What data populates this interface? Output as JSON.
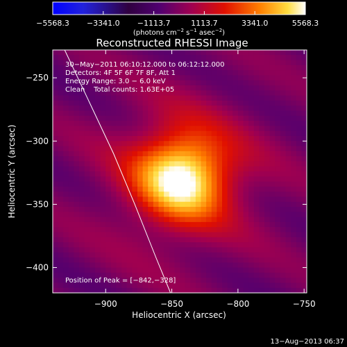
{
  "chart_data": {
    "type": "heatmap",
    "title": "Reconstructed RHESSI Image",
    "xlabel": "Heliocentric X (arcsec)",
    "ylabel": "Heliocentric Y (arcsec)",
    "xlim": [
      -940,
      -748
    ],
    "ylim": [
      -420,
      -228
    ],
    "x_ticks": [
      -900,
      -850,
      -800,
      -750
    ],
    "x_tick_labels": [
      "−900",
      "−850",
      "−800",
      "−750"
    ],
    "y_ticks": [
      -250,
      -300,
      -350,
      -400
    ],
    "y_tick_labels": [
      "−250",
      "−300",
      "−350",
      "−400"
    ],
    "colorbar": {
      "min": -5568.3,
      "max": 5568.3,
      "tick_values": [
        -5568.3,
        -3341.0,
        -1113.7,
        1113.7,
        3341.0,
        5568.3
      ],
      "tick_labels": [
        "−5568.3",
        "−3341.0",
        "−1113.7",
        "1113.7",
        "3341.0",
        "5568.3"
      ],
      "units_prefix": "(photons cm",
      "units_exp1": "−2",
      "units_mid": " s",
      "units_exp2": "−1",
      "units_mid2": " asec",
      "units_exp3": "−2",
      "units_suffix": ")"
    },
    "peak": [
      -842,
      -328
    ],
    "annotations": [
      "30−May−2011 06:10:12.000 to 06:12:12.000",
      "Detectors: 4F 5F 6F 7F 8F, Att 1",
      "Energy Range: 3.0 − 6.0 keV",
      "Clean    Total counts: 1.63E+05"
    ],
    "peak_label": "Position of Peak = [−842,−328]",
    "limb_curve": [
      [
        -931,
        -228
      ],
      [
        -912,
        -270
      ],
      [
        -894,
        -310
      ],
      [
        -878,
        -350
      ],
      [
        -862,
        -392
      ],
      [
        -851,
        -420
      ]
    ],
    "timestamp": "13−Aug−2013 06:37"
  }
}
